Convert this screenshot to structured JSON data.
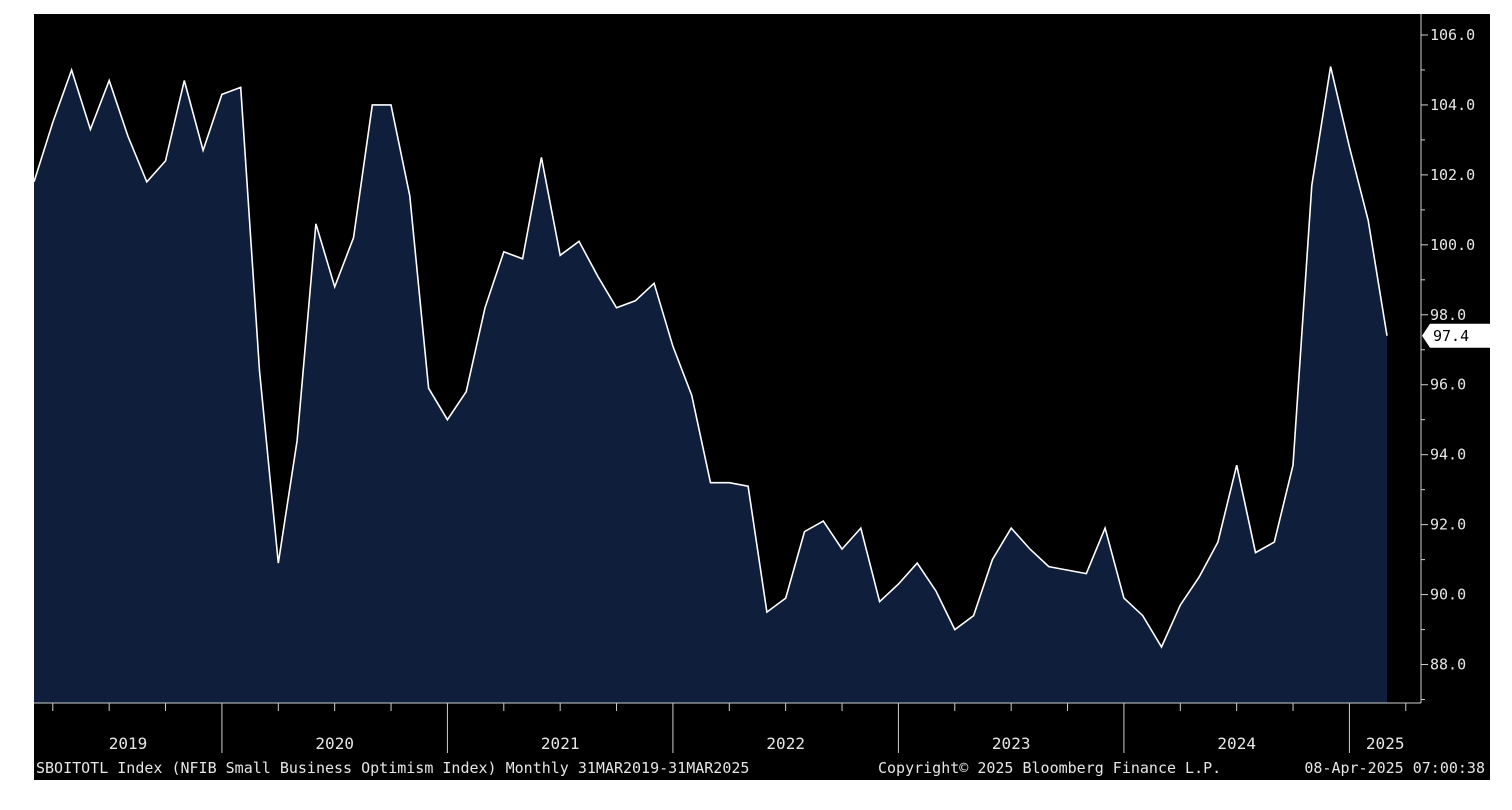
{
  "chart_data": {
    "type": "area",
    "ylim": [
      86.9,
      106.6
    ],
    "y_ticks": [
      "106.0",
      "104.0",
      "102.0",
      "100.0",
      "98.0",
      "96.0",
      "94.0",
      "92.0",
      "90.0",
      "88.0"
    ],
    "y_tick_values": [
      106,
      104,
      102,
      100,
      98,
      96,
      94,
      92,
      90,
      88
    ],
    "x_tick_labels": [
      "2019",
      "2020",
      "2021",
      "2022",
      "2023",
      "2024",
      "2025"
    ],
    "x_start": "2019-03",
    "x_end": "2025-03",
    "x": [
      "2019-03",
      "2019-04",
      "2019-05",
      "2019-06",
      "2019-07",
      "2019-08",
      "2019-09",
      "2019-10",
      "2019-11",
      "2019-12",
      "2020-01",
      "2020-02",
      "2020-03",
      "2020-04",
      "2020-05",
      "2020-06",
      "2020-07",
      "2020-08",
      "2020-09",
      "2020-10",
      "2020-11",
      "2020-12",
      "2021-01",
      "2021-02",
      "2021-03",
      "2021-04",
      "2021-05",
      "2021-06",
      "2021-07",
      "2021-08",
      "2021-09",
      "2021-10",
      "2021-11",
      "2021-12",
      "2022-01",
      "2022-02",
      "2022-03",
      "2022-04",
      "2022-05",
      "2022-06",
      "2022-07",
      "2022-08",
      "2022-09",
      "2022-10",
      "2022-11",
      "2022-12",
      "2023-01",
      "2023-02",
      "2023-03",
      "2023-04",
      "2023-05",
      "2023-06",
      "2023-07",
      "2023-08",
      "2023-09",
      "2023-10",
      "2023-11",
      "2023-12",
      "2024-01",
      "2024-02",
      "2024-03",
      "2024-04",
      "2024-05",
      "2024-06",
      "2024-07",
      "2024-08",
      "2024-09",
      "2024-10",
      "2024-11",
      "2024-12",
      "2025-01",
      "2025-02",
      "2025-03"
    ],
    "series": [
      {
        "values": [
          101.8,
          103.5,
          105.0,
          103.3,
          104.7,
          103.1,
          101.8,
          102.4,
          104.7,
          102.7,
          104.3,
          104.5,
          96.4,
          90.9,
          94.4,
          100.6,
          98.8,
          100.2,
          104.0,
          104.0,
          101.4,
          95.9,
          95.0,
          95.8,
          98.2,
          99.8,
          99.6,
          102.5,
          99.7,
          100.1,
          99.1,
          98.2,
          98.4,
          98.9,
          97.1,
          95.7,
          93.2,
          93.2,
          93.1,
          89.5,
          89.9,
          91.8,
          92.1,
          91.3,
          91.9,
          89.8,
          90.3,
          90.9,
          90.1,
          89.0,
          89.4,
          91.0,
          91.9,
          91.3,
          90.8,
          90.7,
          90.6,
          91.9,
          89.9,
          89.4,
          88.5,
          89.7,
          90.5,
          91.5,
          93.7,
          91.2,
          91.5,
          93.7,
          101.7,
          105.1,
          102.8,
          100.7,
          97.4
        ]
      }
    ],
    "last_value_label": "97.4",
    "colors": {
      "background": "#000000",
      "area_fill": "#0f1e3a",
      "line": "#ffffff",
      "text": "#e6e6e6",
      "tag_bg": "#ffffff"
    },
    "grid": false
  },
  "footer": {
    "ticker": "SBOITOTL Index (NFIB Small Business Optimism Index)  Monthly 31MAR2019-31MAR2025",
    "copyright": "Copyright© 2025 Bloomberg Finance L.P.",
    "timestamp": "08-Apr-2025 07:00:38"
  }
}
